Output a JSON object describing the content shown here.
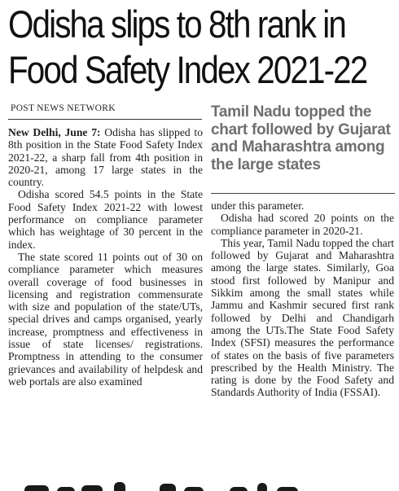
{
  "headline": {
    "line1": "Odisha slips to 8th rank in",
    "line2": "Food Safety Index 2021-22"
  },
  "byline": "POST NEWS NETWORK",
  "pull_quote": "Tamil Nadu topped the chart followed by Gujarat and Maharashtra among the large states",
  "article": {
    "dateline": "New Delhi, June 7:",
    "p1_rest": " Odisha has slipped to 8th position in the State Food Safety Index 2021-22, a sharp fall from 4th position in 2020-21, among 17 large states in the country.",
    "p2": "Odisha scored 54.5 points in the State Food Safety Index 2021-22 with lowest performance on compliance parameter which has weightage of 30 percent in the index.",
    "p3": "The state scored 11 points out of 30 on compliance parameter which measures overall coverage of food businesses in licensing and registration commensurate with size and population of the state/UTs, special drives and camps organised, yearly increase, promptness and effectiveness in issue of state licenses/ registrations. Promptness in attending to the consumer grievances and availability of helpdesk and web portals are also examined",
    "p3_cont": "under this parameter.",
    "p4": "Odisha had scored 20 points on the compliance parameter in 2020-21.",
    "p5": "This year, Tamil Nadu topped the chart followed by Gujarat and Maharashtra among the large states. Similarly, Goa stood first followed by Manipur and Sikkim among the small states while Jammu and Kashmir secured first rank followed by Delhi and Chandigarh among the UTs.The State Food Safety Index (SFSI) measures the performance of states on the basis of five parameters prescribed by the Health Ministry. The rating is done by the Food Safety and Standards Authority of India (FSSAI)."
  }
}
